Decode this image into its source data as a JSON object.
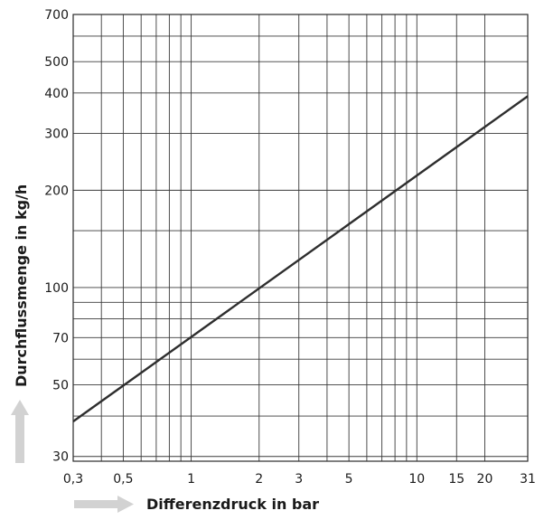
{
  "chart_data": {
    "type": "line",
    "title": "",
    "xlabel": "Differenzdruck in bar",
    "ylabel": "Durchflussmenge in kg/h",
    "x_scale": "log",
    "y_scale": "log",
    "xlim": [
      0.3,
      31
    ],
    "ylim": [
      29,
      700
    ],
    "grid": true,
    "x_ticks": [
      0.3,
      0.5,
      1,
      2,
      3,
      5,
      10,
      15,
      20,
      31
    ],
    "x_tick_labels": [
      "0,3",
      "0,5",
      "1",
      "2",
      "3",
      "5",
      "10",
      "15",
      "20",
      "31"
    ],
    "y_ticks": [
      30,
      50,
      70,
      100,
      200,
      300,
      400,
      500,
      700
    ],
    "y_tick_labels": [
      "30",
      "50",
      "70",
      "100",
      "200",
      "300",
      "400",
      "500",
      "700"
    ],
    "x_gridlines": [
      0.3,
      0.4,
      0.5,
      0.6,
      0.7,
      0.8,
      0.9,
      1,
      2,
      3,
      4,
      5,
      6,
      7,
      8,
      9,
      10,
      15,
      20,
      31
    ],
    "y_gridlines": [
      30,
      40,
      50,
      60,
      70,
      80,
      90,
      100,
      150,
      200,
      300,
      400,
      500,
      600,
      700
    ],
    "series": [
      {
        "x": [
          0.3,
          31
        ],
        "y": [
          38.5,
          391
        ]
      }
    ]
  }
}
